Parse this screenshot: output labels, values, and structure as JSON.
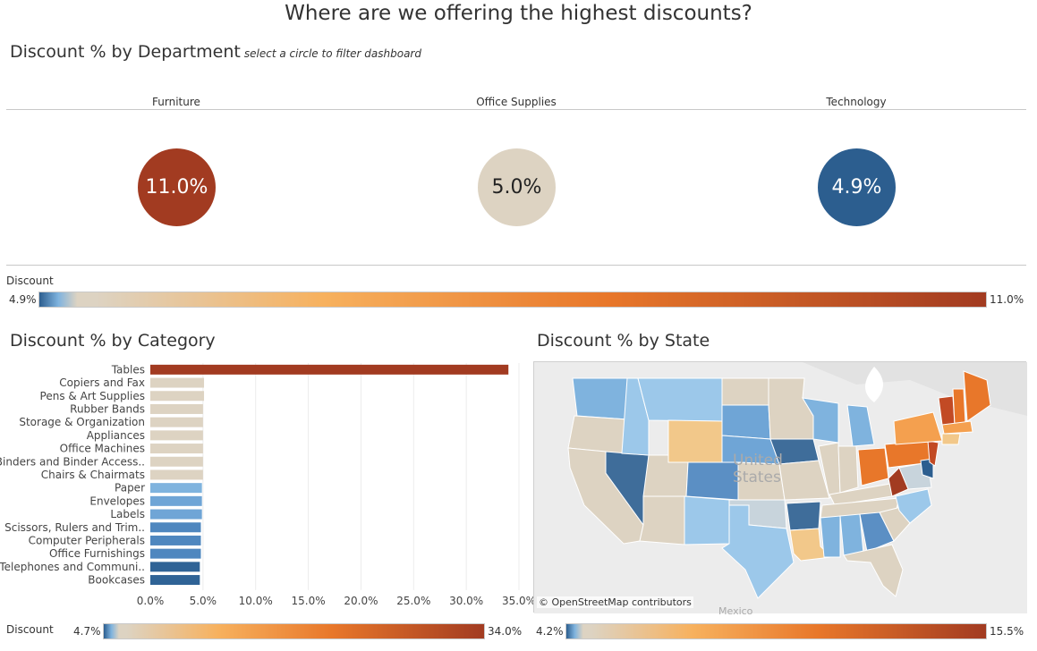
{
  "title": "Where are we offering the highest discounts?",
  "department_section": {
    "title": "Discount % by Department",
    "subtitle": "select a circle to filter dashboard",
    "departments": [
      {
        "name": "Furniture",
        "value_label": "11.0%",
        "value": 11.0,
        "color": "#a23b21",
        "text_color": "#ffffff"
      },
      {
        "name": "Office Supplies",
        "value_label": "5.0%",
        "value": 5.0,
        "color": "#ddd3c2",
        "text_color": "#222222"
      },
      {
        "name": "Technology",
        "value_label": "4.9%",
        "value": 4.9,
        "color": "#2c5e8f",
        "text_color": "#ffffff"
      }
    ]
  },
  "top_legend": {
    "label": "Discount",
    "min_label": "4.9%",
    "max_label": "11.0%"
  },
  "category_section": {
    "title": "Discount % by Category"
  },
  "state_section": {
    "title": "Discount % by State",
    "attribution": "© OpenStreetMap contributors",
    "map_label_1": "United",
    "map_label_2": "States",
    "map_label_3": "Mexico"
  },
  "bottom_legend_left": {
    "label": "Discount",
    "min_label": "4.7%",
    "max_label": "34.0%"
  },
  "bottom_legend_right": {
    "min_label": "4.2%",
    "max_label": "15.5%"
  },
  "colors": {
    "ramp_blue_dark": "#2c5e8f",
    "ramp_blue_light": "#7fb3de",
    "ramp_neutral": "#ddd3c2",
    "ramp_orange_light": "#f7b15e",
    "ramp_orange": "#e8772a",
    "ramp_red_dark": "#a23b21"
  },
  "chart_data": {
    "type": "bar",
    "orientation": "horizontal",
    "categories": [
      "Tables",
      "Copiers and Fax",
      "Pens & Art Supplies",
      "Rubber Bands",
      "Storage & Organization",
      "Appliances",
      "Office Machines",
      "Binders and Binder Access..",
      "Chairs & Chairmats",
      "Paper",
      "Envelopes",
      "Labels",
      "Scissors, Rulers and Trim..",
      "Computer Peripherals",
      "Office Furnishings",
      "Telephones and Communi..",
      "Bookcases"
    ],
    "values": [
      34.0,
      5.1,
      5.1,
      5.0,
      5.0,
      5.0,
      5.0,
      5.0,
      5.0,
      4.9,
      4.9,
      4.9,
      4.8,
      4.8,
      4.8,
      4.7,
      4.7
    ],
    "colors": [
      "#a23b21",
      "#ddd3c2",
      "#ddd3c2",
      "#ddd3c2",
      "#ddd3c2",
      "#ddd3c2",
      "#ddd3c2",
      "#ddd3c2",
      "#ddd3c2",
      "#7fb3de",
      "#6fa5d6",
      "#6fa5d6",
      "#4f87bf",
      "#4f87bf",
      "#4f87bf",
      "#2f6396",
      "#2f6396"
    ],
    "xlim": [
      0,
      35
    ],
    "xticks": [
      "0.0%",
      "5.0%",
      "10.0%",
      "15.0%",
      "20.0%",
      "25.0%",
      "30.0%",
      "35.0%"
    ],
    "xtick_values": [
      0,
      5,
      10,
      15,
      20,
      25,
      30,
      35
    ],
    "grid": true
  }
}
